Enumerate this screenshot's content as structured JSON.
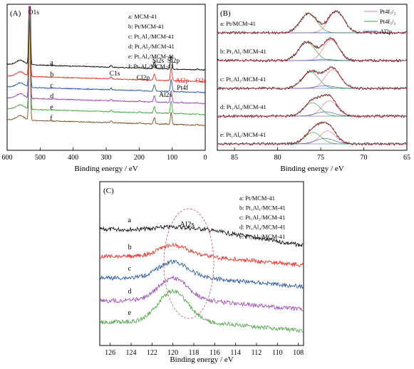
{
  "chart_data": [
    {
      "panel": "(A)",
      "type": "line",
      "xlabel": "Binding energy / eV",
      "ylabel": "",
      "xlim": [
        600,
        0
      ],
      "x_ticks": [
        "600",
        "500",
        "400",
        "300",
        "200",
        "100",
        "0"
      ],
      "legend": {
        "placement": "top-right",
        "entries": [
          "a: MCM-41",
          "b: Pt/MCM-41",
          "c: Pt₁Al₁/MCM-41",
          "d: Pt₁Al₂/MCM-41",
          "e: Pt₁Al₄/MCM-41",
          "f: Pt₁Al₆/MCM-41"
        ]
      },
      "series": [
        {
          "name": "a",
          "color": "#000000",
          "baseline": 0.55,
          "pt_scale": 0.0,
          "al_scale": 0.0
        },
        {
          "name": "b",
          "color": "#e8261e",
          "baseline": 0.47,
          "pt_scale": 1.0,
          "al_scale": 0.0
        },
        {
          "name": "c",
          "color": "#1f4fa3",
          "baseline": 0.395,
          "pt_scale": 1.0,
          "al_scale": 0.5
        },
        {
          "name": "d",
          "color": "#9b3fb4",
          "baseline": 0.32,
          "pt_scale": 1.0,
          "al_scale": 0.8
        },
        {
          "name": "e",
          "color": "#40a33a",
          "baseline": 0.245,
          "pt_scale": 1.0,
          "al_scale": 1.0
        },
        {
          "name": "f",
          "color": "#7a4a1f",
          "baseline": 0.17,
          "pt_scale": 1.0,
          "al_scale": 1.2
        }
      ],
      "peaks": [
        {
          "label": "O1s",
          "x": 532,
          "height": 3.5,
          "color": "#e8261e"
        },
        {
          "label": "C1s",
          "x": 285,
          "height": 0.06
        },
        {
          "label": "Cl2p",
          "x": 199,
          "height": 0.03
        },
        {
          "label": "Si2s",
          "x": 154,
          "height": 0.22
        },
        {
          "label": "Al2s",
          "x": 120,
          "height": 0.015
        },
        {
          "label": "Si2p",
          "x": 103,
          "height": 0.42
        },
        {
          "label": "Al2p",
          "x": 74,
          "height": 0.01
        },
        {
          "label": "Pt4f",
          "x": 71,
          "height": 0.015
        },
        {
          "label": "O2s",
          "x": 24,
          "height": 0.025
        }
      ],
      "peak_labels": {
        "O1s": "O1s",
        "C1s": "C1s",
        "Cl2p": "Cl2p",
        "Si2s": "Si2s",
        "Al2s": "Al2s",
        "Si2p": "Si2p",
        "Al2p": "Al2p",
        "Pt4f": "Pt4f",
        "O2s": "O2s"
      },
      "curve_labels": [
        "a",
        "b",
        "c",
        "d",
        "e",
        "f"
      ]
    },
    {
      "panel": "(B)",
      "type": "line",
      "xlabel": "Binding energy / eV",
      "ylabel": "",
      "xlim": [
        87,
        65
      ],
      "x_ticks": [
        "85",
        "80",
        "75",
        "70",
        "65"
      ],
      "legend": {
        "placement": "top-right",
        "entries": [
          {
            "label": "Pt4f₇/₂",
            "color": "#e87a9a"
          },
          {
            "label": "Pt4f₅/₂",
            "color": "#40a33a"
          },
          {
            "label": "Al2p",
            "color": "#2e4fb3"
          }
        ]
      },
      "series": [
        {
          "name": "a: Pt/MCM-41",
          "pt72": 73.2,
          "pt52": 76.4,
          "amp": 1.0,
          "al_amp": 0.0
        },
        {
          "name": "b: Pt₁Al₁/MCM-41",
          "pt72": 73.8,
          "pt52": 76.6,
          "amp": 0.95,
          "al_amp": 0.05
        },
        {
          "name": "c: Pt₁Al₂/MCM-41",
          "pt72": 73.6,
          "pt52": 76.2,
          "amp": 0.85,
          "al_amp": 0.12
        },
        {
          "name": "d: Pt₁Al₄/MCM-41",
          "pt72": 74.0,
          "pt52": 76.0,
          "amp": 0.7,
          "al_amp": 0.2
        },
        {
          "name": "e: Pt₁Al₆/MCM-41",
          "pt72": 74.2,
          "pt52": 75.9,
          "amp": 0.6,
          "al_amp": 0.25
        }
      ]
    },
    {
      "panel": "(C)",
      "type": "line",
      "xlabel": "Binding energy / eV",
      "ylabel": "",
      "xlim": [
        127,
        107.5
      ],
      "x_ticks": [
        "126",
        "124",
        "122",
        "120",
        "118",
        "116",
        "114",
        "112",
        "110",
        "108"
      ],
      "annotation": "Al2s",
      "legend": {
        "placement": "top-right",
        "entries": [
          "a: Pt/MCM-41",
          "b: Pt₁Al₁/MCM-41",
          "c: Pt₁Al₂/MCM-41",
          "d: Pt₁Al₄/MCM-41",
          "e: Pt₁Al₆/MCM-41"
        ]
      },
      "series": [
        {
          "name": "a",
          "color": "#000000",
          "peak_amp": 0.05
        },
        {
          "name": "b",
          "color": "#e8261e",
          "peak_amp": 0.22
        },
        {
          "name": "c",
          "color": "#1f4fa3",
          "peak_amp": 0.32
        },
        {
          "name": "d",
          "color": "#9b3fb4",
          "peak_amp": 0.45
        },
        {
          "name": "e",
          "color": "#40a33a",
          "peak_amp": 0.62
        }
      ],
      "peak_center": 120,
      "curve_labels": [
        "a",
        "b",
        "c",
        "d",
        "e"
      ]
    }
  ]
}
